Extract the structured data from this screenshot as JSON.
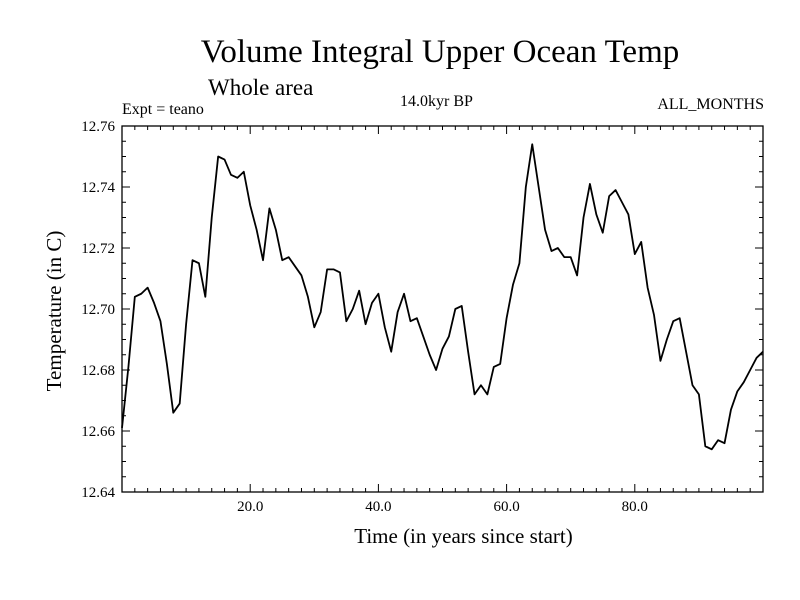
{
  "header": {
    "title": "Volume Integral Upper Ocean Temp",
    "subtitle": "Whole area",
    "experiment": "Expt = teano",
    "period": "14.0kyr BP",
    "months": "ALL_MONTHS"
  },
  "chart_data": {
    "type": "line",
    "title": "Volume Integral Upper Ocean Temp",
    "subtitle": "Whole area",
    "xlabel": "Time (in years since start)",
    "ylabel": "Temperature (in C)",
    "xlim": [
      0,
      100
    ],
    "ylim": [
      12.64,
      12.76
    ],
    "xticks": [
      20,
      40,
      60,
      80
    ],
    "xtick_labels": [
      "20.0",
      "40.0",
      "60.0",
      "80.0"
    ],
    "yticks": [
      12.64,
      12.66,
      12.68,
      12.7,
      12.72,
      12.74,
      12.76
    ],
    "ytick_labels": [
      "12.64",
      "12.66",
      "12.68",
      "12.70",
      "12.72",
      "12.74",
      "12.76"
    ],
    "grid": false,
    "series": [
      {
        "name": "Temperature",
        "x": [
          0,
          1,
          2,
          3,
          4,
          5,
          6,
          7,
          8,
          9,
          10,
          11,
          12,
          13,
          14,
          15,
          16,
          17,
          18,
          19,
          20,
          21,
          22,
          23,
          24,
          25,
          26,
          27,
          28,
          29,
          30,
          31,
          32,
          33,
          34,
          35,
          36,
          37,
          38,
          39,
          40,
          41,
          42,
          43,
          44,
          45,
          46,
          47,
          48,
          49,
          50,
          51,
          52,
          53,
          54,
          55,
          56,
          57,
          58,
          59,
          60,
          61,
          62,
          63,
          64,
          65,
          66,
          67,
          68,
          69,
          70,
          71,
          72,
          73,
          74,
          75,
          76,
          77,
          78,
          79,
          80,
          81,
          82,
          83,
          84,
          85,
          86,
          87,
          88,
          89,
          90,
          91,
          92,
          93,
          94,
          95,
          96,
          97,
          98,
          99,
          100
        ],
        "values": [
          12.661,
          12.681,
          12.704,
          12.705,
          12.707,
          12.702,
          12.696,
          12.682,
          12.666,
          12.669,
          12.695,
          12.716,
          12.715,
          12.704,
          12.73,
          12.75,
          12.749,
          12.744,
          12.743,
          12.745,
          12.734,
          12.726,
          12.716,
          12.733,
          12.726,
          12.716,
          12.717,
          12.714,
          12.711,
          12.704,
          12.694,
          12.699,
          12.713,
          12.713,
          12.712,
          12.696,
          12.7,
          12.706,
          12.695,
          12.702,
          12.705,
          12.694,
          12.686,
          12.699,
          12.705,
          12.696,
          12.697,
          12.691,
          12.685,
          12.68,
          12.687,
          12.691,
          12.7,
          12.701,
          12.686,
          12.672,
          12.675,
          12.672,
          12.681,
          12.682,
          12.697,
          12.708,
          12.715,
          12.74,
          12.754,
          12.74,
          12.726,
          12.719,
          12.72,
          12.717,
          12.717,
          12.711,
          12.73,
          12.741,
          12.731,
          12.725,
          12.737,
          12.739,
          12.735,
          12.731,
          12.718,
          12.722,
          12.707,
          12.698,
          12.683,
          12.69,
          12.696,
          12.697,
          12.686,
          12.675,
          12.672,
          12.655,
          12.654,
          12.657,
          12.656,
          12.667,
          12.673,
          12.676,
          12.68,
          12.684,
          12.686
        ]
      }
    ]
  }
}
